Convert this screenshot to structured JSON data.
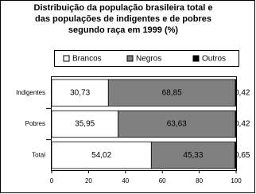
{
  "chart_data": {
    "type": "stacked_bar_horizontal",
    "title": [
      "Distribuição da população brasileira total e",
      "das populações de indigentes e de pobres",
      "segundo raça em 1999 (%)"
    ],
    "categories": [
      "Indigentes",
      "Pobres",
      "Total"
    ],
    "series": [
      {
        "name": "Brancos",
        "color": "#ffffff",
        "values": [
          30.73,
          35.95,
          54.02
        ],
        "value_labels": [
          "30,73",
          "35,95",
          "54,02"
        ]
      },
      {
        "name": "Negros",
        "color": "#808080",
        "values": [
          68.85,
          63.63,
          45.33
        ],
        "value_labels": [
          "68,85",
          "63,63",
          "45,33"
        ]
      },
      {
        "name": "Outros",
        "color": "#000000",
        "values": [
          0.42,
          0.42,
          0.65
        ],
        "value_labels": [
          "0,42",
          "0,42",
          "0,65"
        ]
      }
    ],
    "xlim": [
      0,
      100
    ],
    "xticks": [
      0,
      20,
      40,
      60,
      80,
      100
    ]
  }
}
